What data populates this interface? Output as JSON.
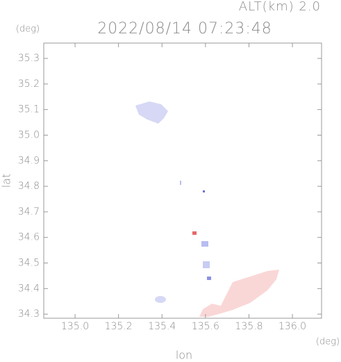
{
  "chart_data": {
    "type": "map",
    "title": "2022/08/14 07:23:48",
    "annotation": "ALT(km) 2.0",
    "x_label": "lon",
    "y_label": "lat",
    "x_unit": "(deg)",
    "y_unit": "(deg)",
    "xlim": [
      134.856,
      136.134
    ],
    "ylim": [
      34.284,
      35.36
    ],
    "xticks": [
      {
        "value": 135.0,
        "label": "135.0"
      },
      {
        "value": 135.2,
        "label": "135.2"
      },
      {
        "value": 135.4,
        "label": "135.4"
      },
      {
        "value": 135.6,
        "label": "135.6"
      },
      {
        "value": 135.8,
        "label": "135.8"
      },
      {
        "value": 136.0,
        "label": "136.0"
      }
    ],
    "yticks": [
      {
        "value": 34.3,
        "label": "34.3"
      },
      {
        "value": 34.4,
        "label": "34.4"
      },
      {
        "value": 34.5,
        "label": "34.5"
      },
      {
        "value": 34.6,
        "label": "34.6"
      },
      {
        "value": 34.7,
        "label": "34.7"
      },
      {
        "value": 34.8,
        "label": "34.8"
      },
      {
        "value": 34.9,
        "label": "34.9"
      },
      {
        "value": 35.0,
        "label": "35.0"
      },
      {
        "value": 35.1,
        "label": "35.1"
      },
      {
        "value": 35.2,
        "label": "35.2"
      },
      {
        "value": 35.3,
        "label": "35.3"
      }
    ]
  }
}
